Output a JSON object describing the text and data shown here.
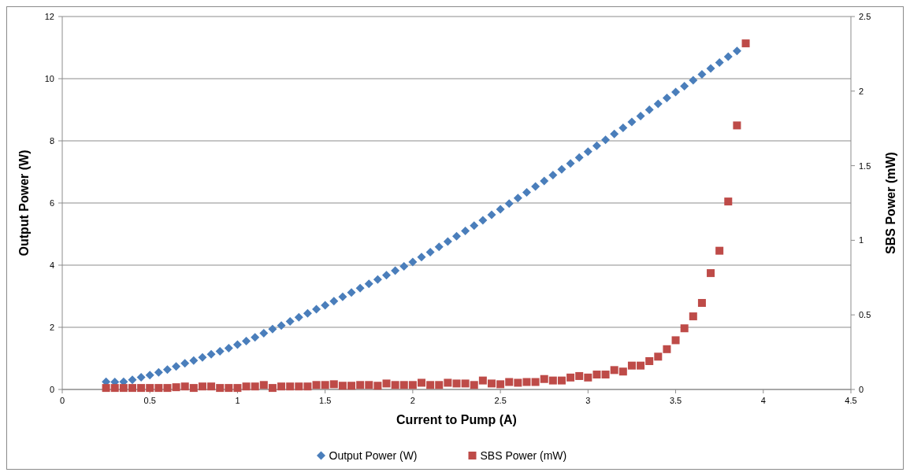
{
  "chart_data": {
    "type": "scatter",
    "xlabel": "Current to Pump (A)",
    "ylabel": "Output Power (W)",
    "y2label": "SBS Power (mW)",
    "xlim": [
      0,
      4.5
    ],
    "xticks": [
      0,
      0.5,
      1,
      1.5,
      2,
      2.5,
      3,
      3.5,
      4,
      4.5
    ],
    "ylim": [
      0,
      12
    ],
    "yticks": [
      0,
      2,
      4,
      6,
      8,
      10,
      12
    ],
    "y2lim": [
      0,
      2.5
    ],
    "y2ticks": [
      0,
      0.5,
      1,
      1.5,
      2,
      2.5
    ],
    "grid": "y",
    "legend": "bottom",
    "series": [
      {
        "name": "Output Power (W)",
        "color": "#4a7ebb",
        "marker": "diamond",
        "x": [
          0.25,
          0.3,
          0.35,
          0.4,
          0.45,
          0.5,
          0.55,
          0.6,
          0.65,
          0.7,
          0.75,
          0.8,
          0.85,
          0.9,
          0.95,
          1,
          1.05,
          1.1,
          1.15,
          1.2,
          1.25,
          1.3,
          1.35,
          1.4,
          1.45,
          1.5,
          1.55,
          1.6,
          1.65,
          1.7,
          1.75,
          1.8,
          1.85,
          1.9,
          1.95,
          2,
          2.05,
          2.1,
          2.15,
          2.2,
          2.25,
          2.3,
          2.35,
          2.4,
          2.45,
          2.5,
          2.55,
          2.6,
          2.65,
          2.7,
          2.75,
          2.8,
          2.85,
          2.9,
          2.95,
          3,
          3.05,
          3.1,
          3.15,
          3.2,
          3.25,
          3.3,
          3.35,
          3.4,
          3.45,
          3.5,
          3.55,
          3.6,
          3.65,
          3.7,
          3.75,
          3.8,
          3.85
        ],
        "values": [
          0.25,
          0.24,
          0.25,
          0.31,
          0.39,
          0.46,
          0.55,
          0.64,
          0.74,
          0.84,
          0.93,
          1.03,
          1.13,
          1.23,
          1.33,
          1.44,
          1.56,
          1.68,
          1.81,
          1.94,
          2.06,
          2.19,
          2.32,
          2.45,
          2.58,
          2.71,
          2.84,
          2.98,
          3.12,
          3.26,
          3.4,
          3.54,
          3.68,
          3.82,
          3.96,
          4.1,
          4.26,
          4.42,
          4.59,
          4.76,
          4.93,
          5.1,
          5.27,
          5.44,
          5.62,
          5.8,
          5.98,
          6.16,
          6.34,
          6.53,
          6.71,
          6.9,
          7.08,
          7.27,
          7.46,
          7.65,
          7.84,
          8.03,
          8.22,
          8.42,
          8.61,
          8.8,
          9,
          9.19,
          9.38,
          9.57,
          9.76,
          9.95,
          10.14,
          10.33,
          10.52,
          10.71,
          10.89
        ]
      },
      {
        "name": "SBS Power (mW)",
        "color": "#be4b48",
        "marker": "square",
        "axis": "y2",
        "x": [
          0.25,
          0.3,
          0.35,
          0.4,
          0.45,
          0.5,
          0.55,
          0.6,
          0.65,
          0.7,
          0.75,
          0.8,
          0.85,
          0.9,
          0.95,
          1,
          1.05,
          1.1,
          1.15,
          1.2,
          1.25,
          1.3,
          1.35,
          1.4,
          1.45,
          1.5,
          1.55,
          1.6,
          1.65,
          1.7,
          1.75,
          1.8,
          1.85,
          1.9,
          1.95,
          2,
          2.05,
          2.1,
          2.15,
          2.2,
          2.25,
          2.3,
          2.35,
          2.4,
          2.45,
          2.5,
          2.55,
          2.6,
          2.65,
          2.7,
          2.75,
          2.8,
          2.85,
          2.9,
          2.95,
          3,
          3.05,
          3.1,
          3.15,
          3.2,
          3.25,
          3.3,
          3.35,
          3.4,
          3.45,
          3.5,
          3.55,
          3.6,
          3.65,
          3.7,
          3.75,
          3.8,
          3.85,
          3.9
        ],
        "values": [
          0.01,
          0.01,
          0.01,
          0.01,
          0.01,
          0.01,
          0.01,
          0.01,
          0.015,
          0.02,
          0.01,
          0.02,
          0.02,
          0.01,
          0.01,
          0.01,
          0.02,
          0.02,
          0.03,
          0.01,
          0.02,
          0.02,
          0.02,
          0.02,
          0.03,
          0.03,
          0.035,
          0.025,
          0.025,
          0.03,
          0.03,
          0.025,
          0.04,
          0.03,
          0.03,
          0.03,
          0.045,
          0.03,
          0.03,
          0.045,
          0.04,
          0.04,
          0.03,
          0.06,
          0.04,
          0.035,
          0.05,
          0.045,
          0.05,
          0.05,
          0.07,
          0.06,
          0.06,
          0.08,
          0.09,
          0.08,
          0.1,
          0.1,
          0.13,
          0.12,
          0.16,
          0.16,
          0.19,
          0.22,
          0.27,
          0.33,
          0.41,
          0.49,
          0.58,
          0.78,
          0.93,
          1.26,
          1.77,
          2.32
        ]
      }
    ]
  }
}
